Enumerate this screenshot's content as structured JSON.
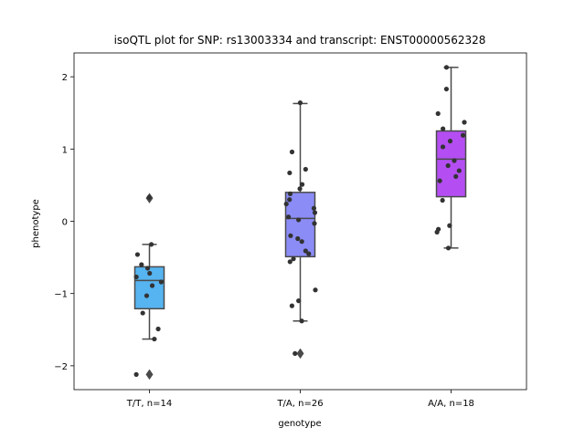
{
  "chart_data": {
    "type": "box",
    "title": "isoQTL plot for SNP: rs13003334 and transcript: ENST00000562328",
    "xlabel": "genotype",
    "ylabel": "phenotype",
    "ylim": [
      -2.33,
      2.33
    ],
    "yticks": [
      -2,
      -1,
      0,
      1,
      2
    ],
    "ytick_labels": [
      "−2",
      "−1",
      "0",
      "1",
      "2"
    ],
    "grid": false,
    "categories": [
      "T/T, n=14",
      "T/A, n=26",
      "A/A, n=18"
    ],
    "groups": [
      {
        "label": "T/T, n=14",
        "color": "#56b4f0",
        "whisker_low": -1.63,
        "q1": -1.21,
        "median": -0.82,
        "q3": -0.63,
        "whisker_high": -0.32,
        "outliers": [
          0.32,
          -2.12
        ],
        "points": [
          0.33,
          -0.32,
          -0.46,
          -0.6,
          -0.65,
          -0.72,
          -0.77,
          -0.84,
          -0.89,
          -1.03,
          -1.27,
          -1.49,
          -1.63,
          -2.12
        ]
      },
      {
        "label": "T/A, n=26",
        "color": "#8b8cf6",
        "whisker_low": -1.38,
        "q1": -0.49,
        "median": 0.04,
        "q3": 0.4,
        "whisker_high": 1.63,
        "outliers": [
          -1.83
        ],
        "points": [
          1.64,
          0.96,
          0.72,
          0.67,
          0.51,
          0.45,
          0.38,
          0.24,
          0.18,
          0.12,
          0.06,
          0.02,
          -0.03,
          -0.2,
          -0.24,
          -0.28,
          -0.41,
          -0.52,
          -0.56,
          -0.95,
          -1.1,
          -1.17,
          -1.38,
          -1.83,
          0.3,
          -0.45
        ]
      },
      {
        "label": "A/A, n=18",
        "color": "#b44ef2",
        "whisker_low": -0.37,
        "q1": 0.34,
        "median": 0.86,
        "q3": 1.25,
        "whisker_high": 2.13,
        "outliers": [],
        "points": [
          2.13,
          1.83,
          1.49,
          1.37,
          1.28,
          1.19,
          1.11,
          1.03,
          0.84,
          0.77,
          0.7,
          0.62,
          0.56,
          0.29,
          -0.06,
          -0.11,
          -0.15,
          -0.37
        ]
      }
    ]
  }
}
